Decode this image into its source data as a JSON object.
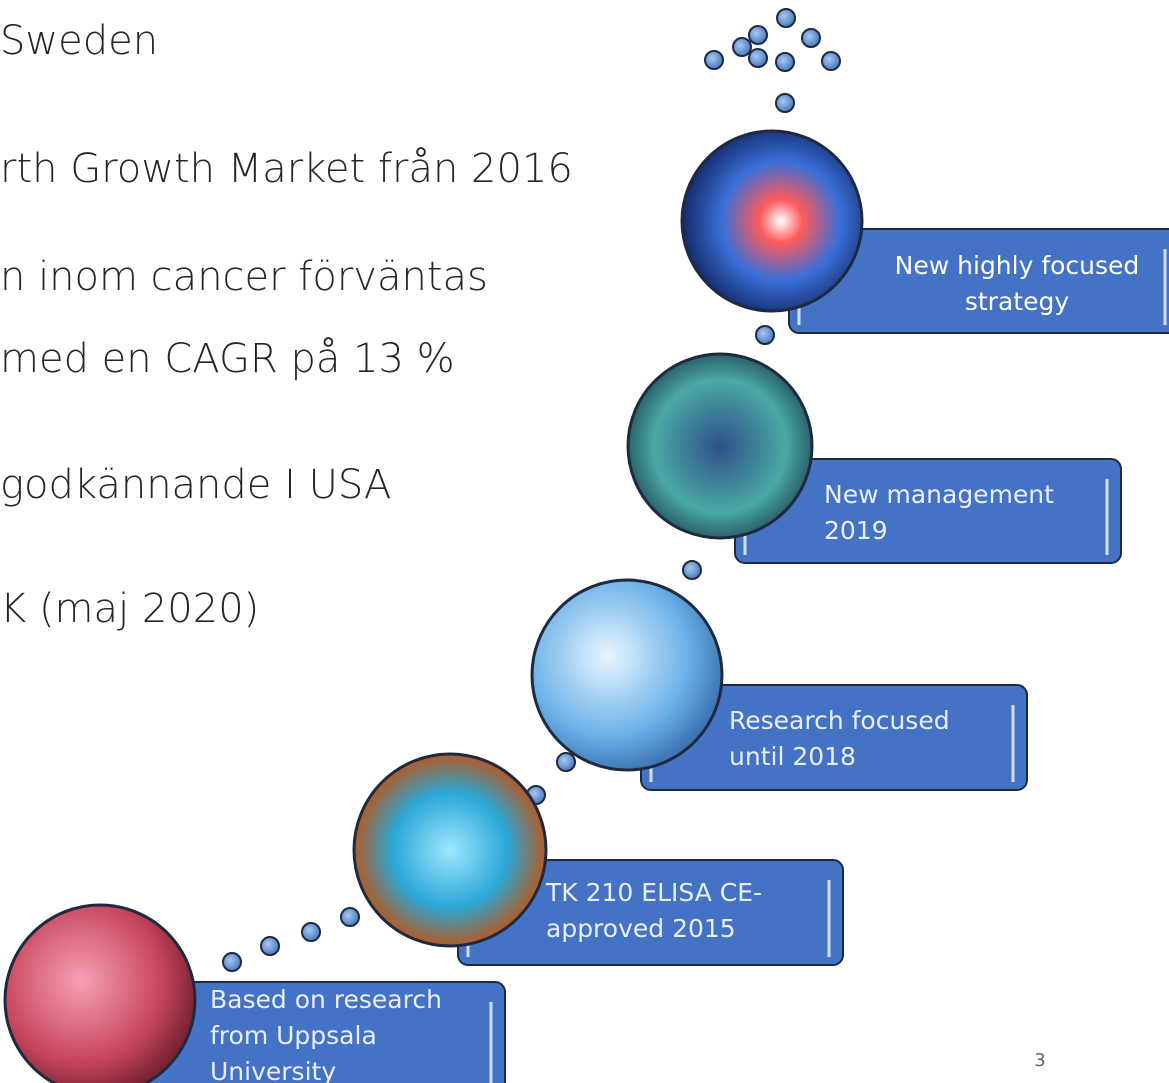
{
  "slide": {
    "text_lines": [
      "Sweden",
      "rth Growth Market från 2016",
      "n inom cancer förväntas",
      "med en CAGR på 13 %",
      "godkännande  I USA",
      "K (maj 2020)"
    ],
    "steps": [
      {
        "lines": [
          "Based on research",
          "from Uppsala",
          "University"
        ]
      },
      {
        "lines": [
          "TK 210 ELISA CE-",
          "approved 2015"
        ]
      },
      {
        "lines": [
          "Research focused",
          "until 2018"
        ]
      },
      {
        "lines": [
          "New management",
          "2019"
        ]
      },
      {
        "lines": [
          "New highly focused",
          "strategy"
        ]
      }
    ],
    "page_number": "3"
  }
}
